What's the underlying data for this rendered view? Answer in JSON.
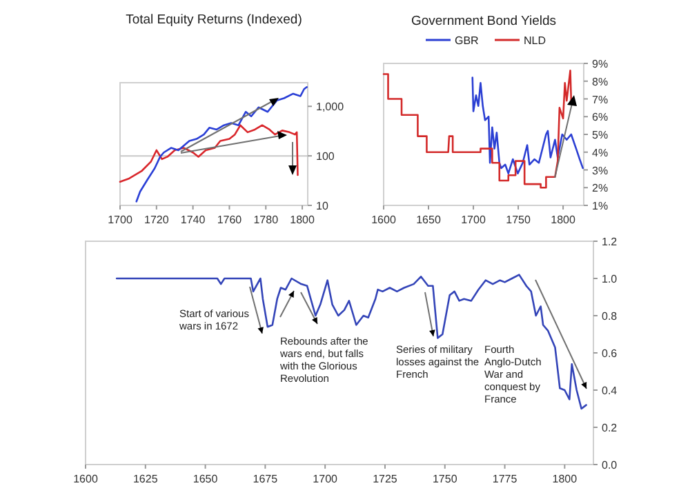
{
  "chart_data": [
    {
      "type": "line",
      "title": "Total Equity Returns (Indexed)",
      "log": "y",
      "xlim": [
        1700,
        1803
      ],
      "xticks": [
        1700,
        1720,
        1740,
        1760,
        1780,
        1800
      ],
      "ylim": [
        10,
        3000
      ],
      "yticks": [
        10,
        100,
        {
          "value": 1000,
          "label": "1,000"
        }
      ],
      "ref_lines": [
        {
          "axis": "y",
          "value": 100,
          "color": "#c8c8c8"
        }
      ],
      "series": [
        {
          "color": "#d9262b",
          "x": [
            1700,
            1705,
            1712,
            1717,
            1720,
            1723,
            1726,
            1730,
            1735,
            1740,
            1743,
            1747,
            1752,
            1755,
            1760,
            1763,
            1766,
            1770,
            1774,
            1778,
            1782,
            1785,
            1789,
            1793,
            1796,
            1797,
            1797.5
          ],
          "values": [
            30,
            35,
            50,
            77,
            130,
            86,
            96,
            130,
            145,
            117,
            96,
            130,
            145,
            200,
            220,
            270,
            415,
            300,
            340,
            415,
            340,
            270,
            325,
            300,
            270,
            300,
            41
          ]
        },
        {
          "color": "#2a3fd6",
          "x": [
            1709,
            1711,
            1715,
            1719,
            1722,
            1724,
            1728,
            1732,
            1734,
            1738,
            1742,
            1746,
            1749,
            1753,
            1757,
            1761,
            1765,
            1769,
            1772,
            1776,
            1781,
            1786,
            1790,
            1795,
            1799,
            1801,
            1802.5
          ],
          "values": [
            12,
            19,
            33,
            56,
            96,
            117,
            145,
            130,
            150,
            200,
            220,
            270,
            370,
            340,
            415,
            460,
            415,
            775,
            630,
            955,
            775,
            1310,
            1460,
            1800,
            1610,
            2230,
            2450
          ]
        }
      ]
    },
    {
      "type": "line",
      "title": "Government Bond Yields",
      "legend": "top",
      "xlim": [
        1600,
        1823
      ],
      "xticks": [
        1600,
        1650,
        1700,
        1750,
        1800
      ],
      "ylim": [
        1,
        9
      ],
      "yticks": [
        {
          "value": 1,
          "label": "1%"
        },
        {
          "value": 2,
          "label": "2%"
        },
        {
          "value": 3,
          "label": "3%"
        },
        {
          "value": 4,
          "label": "4%"
        },
        {
          "value": 5,
          "label": "5%"
        },
        {
          "value": 6,
          "label": "6%"
        },
        {
          "value": 7,
          "label": "7%"
        },
        {
          "value": 8,
          "label": "8%"
        },
        {
          "value": 9,
          "label": "9%"
        }
      ],
      "series": [
        {
          "name": "GBR",
          "color": "#2b3fd3",
          "x": [
            1699,
            1700,
            1703,
            1705.5,
            1708,
            1710.5,
            1713,
            1717,
            1718.5,
            1721,
            1723.5,
            1726,
            1729,
            1731,
            1735.5,
            1739,
            1744,
            1749.5,
            1755,
            1760,
            1762.5,
            1768,
            1773,
            1781,
            1783,
            1786,
            1791,
            1794,
            1799,
            1804,
            1809,
            1814.5,
            1818.5,
            1822
          ],
          "values": [
            8.2,
            6.3,
            7.2,
            6.6,
            7.9,
            6.6,
            5.8,
            6.0,
            3.4,
            5.4,
            4.2,
            5.1,
            3.4,
            3.1,
            3.3,
            2.8,
            3.6,
            2.8,
            3.4,
            4.4,
            3.3,
            3.6,
            3.4,
            5.0,
            5.2,
            3.7,
            4.7,
            3.7,
            5.0,
            4.7,
            5.0,
            4.2,
            3.6,
            3.1
          ]
        },
        {
          "name": "NLD",
          "color": "#d32a2a",
          "x": [
            1600,
            1605,
            1605,
            1620,
            1620,
            1638,
            1638,
            1648,
            1648,
            1672,
            1673,
            1677,
            1677,
            1708,
            1708,
            1721,
            1721,
            1729,
            1729,
            1739,
            1739,
            1747,
            1747,
            1757,
            1757,
            1775,
            1775,
            1781,
            1781,
            1791,
            1794,
            1796,
            1800,
            1802,
            1804,
            1808,
            1809
          ],
          "values": [
            8.4,
            8.4,
            7.0,
            7.0,
            6.1,
            6.1,
            4.9,
            4.9,
            4.0,
            4.0,
            4.9,
            4.9,
            4.0,
            4.0,
            4.2,
            4.2,
            3.4,
            3.4,
            2.4,
            2.4,
            2.7,
            2.7,
            3.5,
            3.5,
            2.2,
            2.2,
            2.0,
            2.0,
            2.6,
            2.6,
            3.5,
            6.5,
            5.9,
            7.9,
            6.9,
            8.6,
            6.9
          ]
        }
      ]
    },
    {
      "type": "line",
      "xlim": [
        1600,
        1812
      ],
      "xticks": [
        1600,
        1625,
        1650,
        1675,
        1700,
        1725,
        1750,
        1775,
        1800
      ],
      "ylim": [
        0,
        1.2
      ],
      "yticks": [
        {
          "value": 0,
          "label": "0.0"
        },
        0.2,
        0.4,
        0.6,
        0.8,
        {
          "value": 1,
          "label": "1.0"
        },
        1.2
      ],
      "annotations": [
        "Start of various wars in 1672",
        "Rebounds after the wars end, but falls with the Glorious Revolution",
        "Series of military losses against the French",
        "Fourth Anglo-Dutch War and conquest by France"
      ],
      "series": [
        {
          "color": "#3344b8",
          "x": [
            1613,
            1655,
            1656.5,
            1658,
            1669,
            1670,
            1673,
            1674,
            1676,
            1678,
            1680,
            1681.5,
            1683.5,
            1686,
            1690,
            1692.5,
            1694,
            1696,
            1698,
            1701,
            1703,
            1705.5,
            1708,
            1710,
            1713,
            1716,
            1718,
            1721,
            1722,
            1724,
            1727,
            1730,
            1733,
            1737,
            1740,
            1743,
            1745,
            1747,
            1749,
            1752,
            1754,
            1756,
            1758,
            1761,
            1764,
            1767,
            1770,
            1773,
            1775,
            1778,
            1781,
            1784,
            1786,
            1788,
            1790,
            1791,
            1793,
            1796,
            1798,
            1800,
            1802,
            1803,
            1805,
            1807,
            1809
          ],
          "values": [
            1.0,
            1.0,
            0.97,
            1.0,
            1.0,
            0.93,
            1.0,
            0.89,
            0.74,
            0.75,
            0.89,
            0.95,
            0.94,
            1.0,
            0.97,
            0.96,
            0.89,
            0.8,
            0.86,
            0.99,
            0.86,
            0.8,
            0.83,
            0.88,
            0.75,
            0.8,
            0.79,
            0.89,
            0.94,
            0.93,
            0.95,
            0.93,
            0.95,
            0.97,
            1.01,
            0.96,
            0.96,
            0.68,
            0.7,
            0.91,
            0.93,
            0.88,
            0.89,
            0.88,
            0.94,
            0.99,
            0.97,
            0.99,
            0.98,
            1.0,
            1.02,
            0.96,
            0.93,
            0.8,
            0.85,
            0.75,
            0.72,
            0.63,
            0.41,
            0.4,
            0.35,
            0.54,
            0.4,
            0.3,
            0.32
          ]
        }
      ]
    }
  ]
}
